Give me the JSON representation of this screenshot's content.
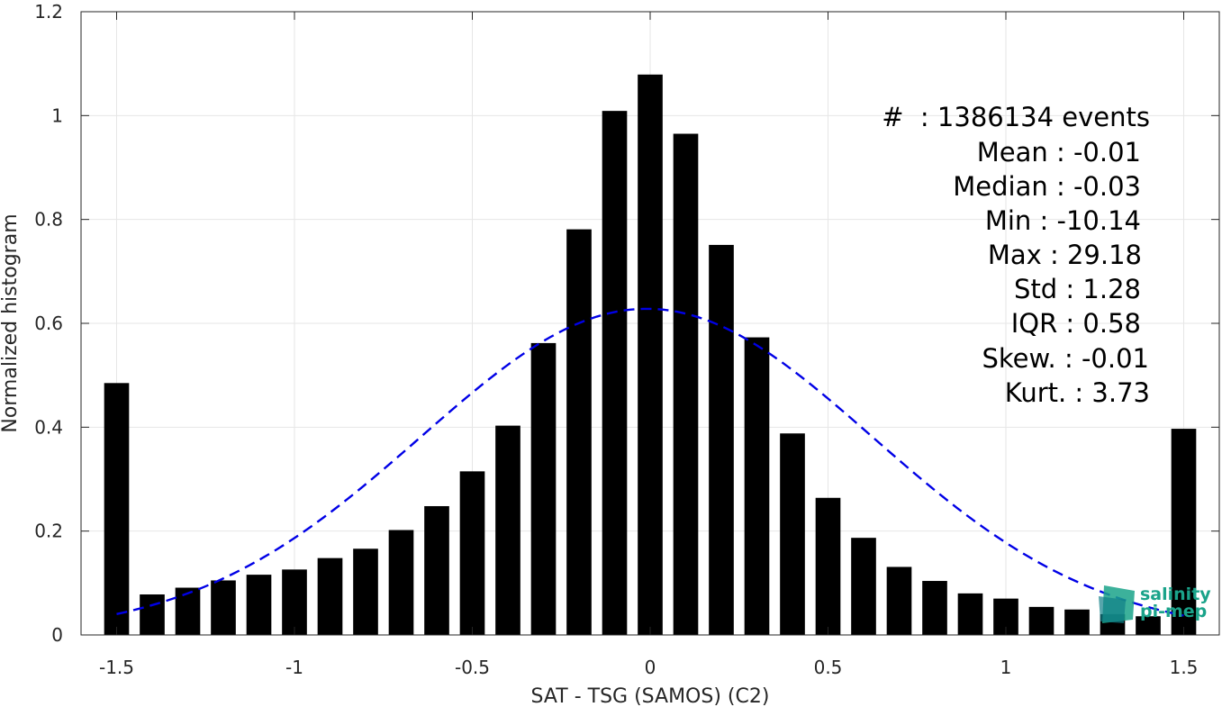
{
  "chart_data": {
    "type": "bar",
    "title": "",
    "xlabel": "SAT - TSG (SAMOS) (C2)",
    "ylabel": "Normalized histogram",
    "xlim": [
      -1.6,
      1.6
    ],
    "ylim": [
      0,
      1.2
    ],
    "xticks": [
      -1.5,
      -1,
      -0.5,
      0,
      0.5,
      1,
      1.5
    ],
    "xtick_labels": [
      "-1.5",
      "-1",
      "-0.5",
      "0",
      "0.5",
      "1",
      "1.5"
    ],
    "yticks": [
      0,
      0.2,
      0.4,
      0.6,
      0.8,
      1,
      1.2
    ],
    "ytick_labels": [
      "0",
      "0.2",
      "0.4",
      "0.6",
      "0.8",
      "1",
      "1.2"
    ],
    "grid": true,
    "bar_color": "#000000",
    "bar_width": 0.07,
    "x": [
      -1.5,
      -1.4,
      -1.3,
      -1.2,
      -1.1,
      -1.0,
      -0.9,
      -0.8,
      -0.7,
      -0.6,
      -0.5,
      -0.4,
      -0.3,
      -0.2,
      -0.1,
      0.0,
      0.1,
      0.2,
      0.3,
      0.4,
      0.5,
      0.6,
      0.7,
      0.8,
      0.9,
      1.0,
      1.1,
      1.2,
      1.3,
      1.4,
      1.5
    ],
    "values": [
      0.485,
      0.078,
      0.091,
      0.105,
      0.116,
      0.126,
      0.148,
      0.166,
      0.202,
      0.248,
      0.315,
      0.403,
      0.562,
      0.781,
      1.009,
      1.079,
      0.965,
      0.751,
      0.573,
      0.388,
      0.264,
      0.187,
      0.131,
      0.104,
      0.08,
      0.07,
      0.054,
      0.049,
      0.04,
      0.036,
      0.397
    ],
    "fit": {
      "name": "gaussian",
      "color": "#0000e6",
      "dash": true,
      "mean": -0.01,
      "std": 0.6355,
      "peak": 0.628
    },
    "annotations": [
      "#  : 1386134 events",
      "Mean : -0.01",
      "Median : -0.03",
      "Min : -10.14",
      "Max : 29.18",
      "Std : 1.28",
      "IQR : 0.58",
      "Skew. : -0.01",
      "Kurt. : 3.73"
    ],
    "logo": {
      "line1": "salinity",
      "line2": "pi-mep",
      "colors": [
        "#1aa38a",
        "#0f7f88"
      ]
    }
  }
}
